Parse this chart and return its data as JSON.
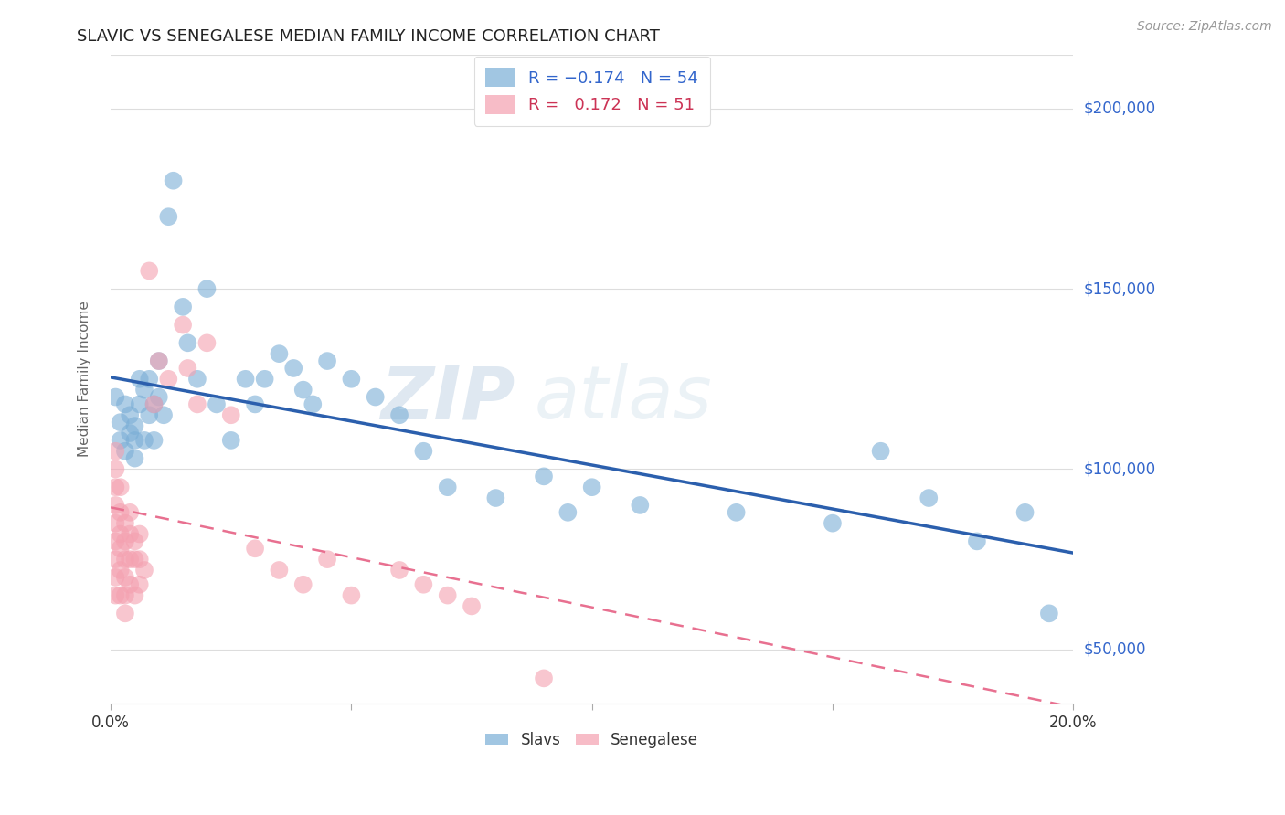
{
  "title": "SLAVIC VS SENEGALESE MEDIAN FAMILY INCOME CORRELATION CHART",
  "source": "Source: ZipAtlas.com",
  "ylabel": "Median Family Income",
  "xlim": [
    0.0,
    0.2
  ],
  "ylim": [
    35000,
    215000
  ],
  "yticks": [
    50000,
    100000,
    150000,
    200000
  ],
  "ytick_labels": [
    "$50,000",
    "$100,000",
    "$150,000",
    "$200,000"
  ],
  "xticks": [
    0.0,
    0.05,
    0.1,
    0.15,
    0.2
  ],
  "xtick_labels": [
    "0.0%",
    "",
    "",
    "",
    "20.0%"
  ],
  "slavs_color": "#7aaed6",
  "senegalese_color": "#f4a0b0",
  "slavs_line_color": "#2b5fad",
  "senegalese_line_color": "#e87090",
  "slavs_R": -0.174,
  "slavs_N": 54,
  "senegalese_R": 0.172,
  "senegalese_N": 51,
  "background_color": "#ffffff",
  "grid_color": "#dddddd",
  "watermark_zip": "ZIP",
  "watermark_atlas": "atlas",
  "slavs_x": [
    0.001,
    0.002,
    0.002,
    0.003,
    0.003,
    0.004,
    0.004,
    0.005,
    0.005,
    0.005,
    0.006,
    0.006,
    0.007,
    0.007,
    0.008,
    0.008,
    0.009,
    0.009,
    0.01,
    0.01,
    0.011,
    0.012,
    0.013,
    0.015,
    0.016,
    0.018,
    0.02,
    0.022,
    0.025,
    0.028,
    0.03,
    0.032,
    0.035,
    0.038,
    0.04,
    0.042,
    0.045,
    0.05,
    0.055,
    0.06,
    0.065,
    0.07,
    0.08,
    0.09,
    0.095,
    0.1,
    0.11,
    0.13,
    0.15,
    0.16,
    0.17,
    0.18,
    0.19,
    0.195
  ],
  "slavs_y": [
    120000,
    113000,
    108000,
    105000,
    118000,
    110000,
    115000,
    108000,
    103000,
    112000,
    125000,
    118000,
    108000,
    122000,
    115000,
    125000,
    118000,
    108000,
    130000,
    120000,
    115000,
    170000,
    180000,
    145000,
    135000,
    125000,
    150000,
    118000,
    108000,
    125000,
    118000,
    125000,
    132000,
    128000,
    122000,
    118000,
    130000,
    125000,
    120000,
    115000,
    105000,
    95000,
    92000,
    98000,
    88000,
    95000,
    90000,
    88000,
    85000,
    105000,
    92000,
    80000,
    88000,
    60000
  ],
  "senegalese_x": [
    0.001,
    0.001,
    0.001,
    0.001,
    0.001,
    0.001,
    0.001,
    0.001,
    0.001,
    0.002,
    0.002,
    0.002,
    0.002,
    0.002,
    0.002,
    0.003,
    0.003,
    0.003,
    0.003,
    0.003,
    0.003,
    0.004,
    0.004,
    0.004,
    0.004,
    0.005,
    0.005,
    0.005,
    0.006,
    0.006,
    0.006,
    0.007,
    0.008,
    0.009,
    0.01,
    0.012,
    0.015,
    0.016,
    0.018,
    0.02,
    0.025,
    0.03,
    0.035,
    0.04,
    0.045,
    0.05,
    0.06,
    0.065,
    0.07,
    0.075,
    0.09
  ],
  "senegalese_y": [
    105000,
    100000,
    95000,
    90000,
    85000,
    80000,
    75000,
    70000,
    65000,
    95000,
    88000,
    82000,
    78000,
    72000,
    65000,
    85000,
    80000,
    75000,
    70000,
    65000,
    60000,
    88000,
    82000,
    75000,
    68000,
    80000,
    75000,
    65000,
    82000,
    75000,
    68000,
    72000,
    155000,
    118000,
    130000,
    125000,
    140000,
    128000,
    118000,
    135000,
    115000,
    78000,
    72000,
    68000,
    75000,
    65000,
    72000,
    68000,
    65000,
    62000,
    42000
  ]
}
